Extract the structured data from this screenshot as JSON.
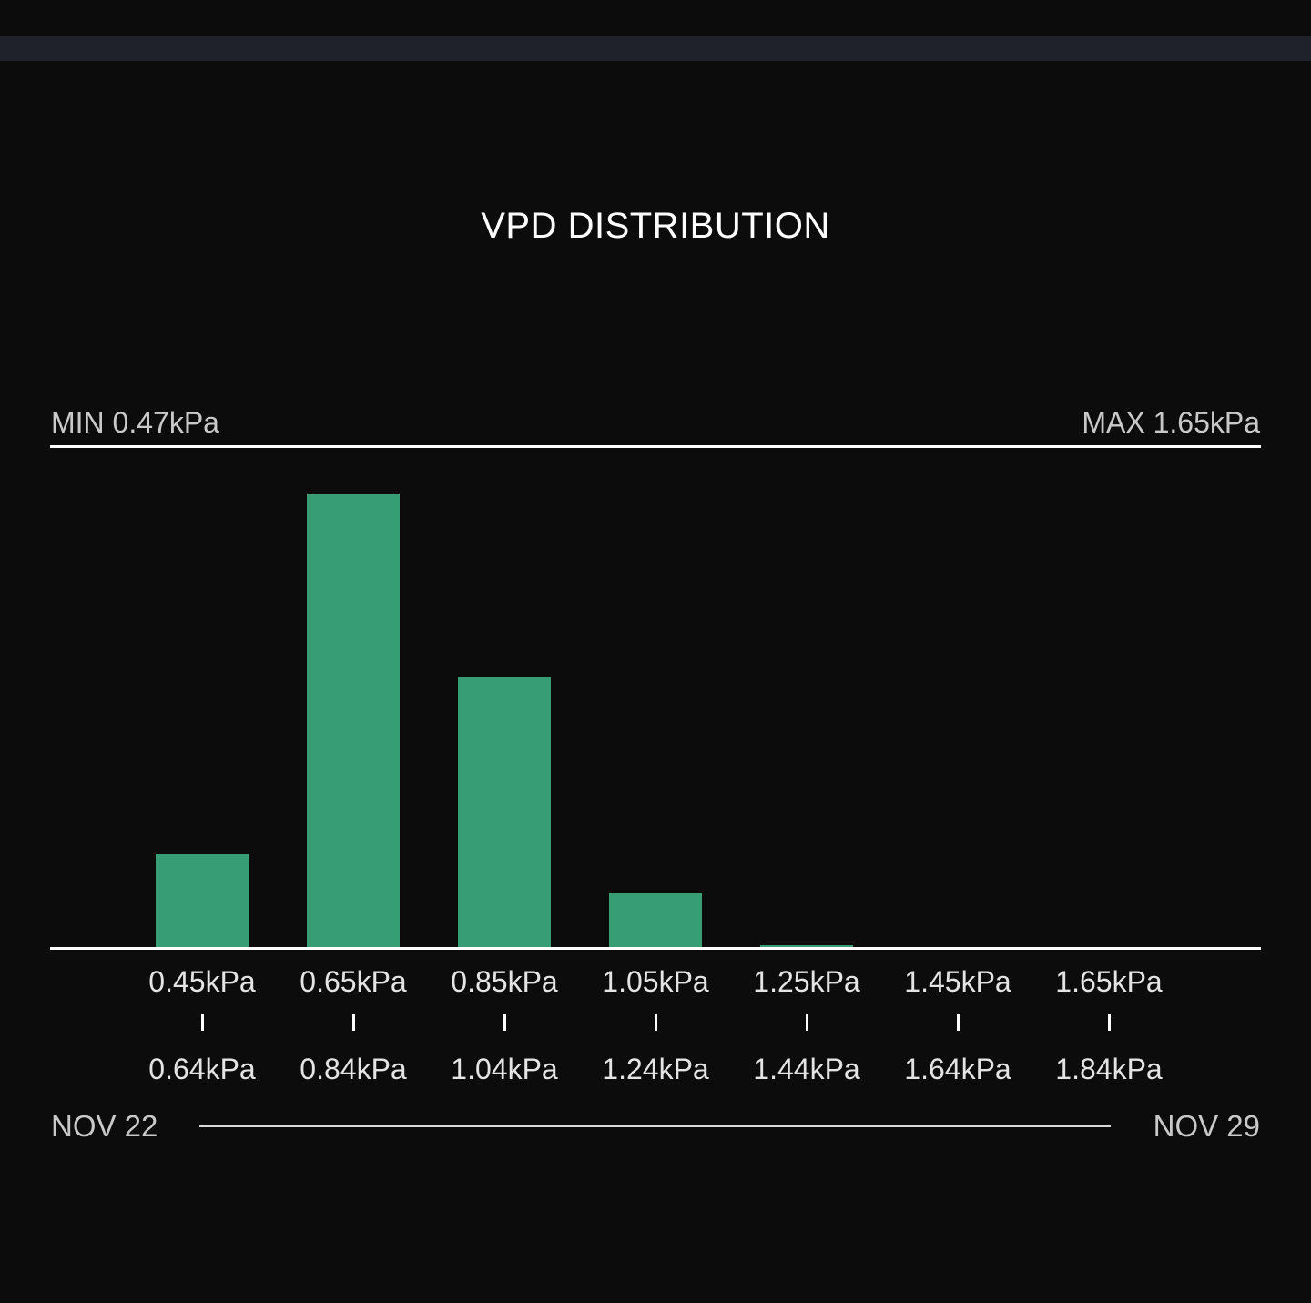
{
  "colors": {
    "background": "#0c0c0d",
    "top_bar": "#1f222a",
    "bar": "#369d74",
    "axis": "#ffffff",
    "label": "#c9c9c9"
  },
  "chart_data": {
    "type": "bar",
    "title": "VPD DISTRIBUTION",
    "min_label": "MIN 0.47kPa",
    "max_label": "MAX 1.65kPa",
    "date_start": "NOV 22",
    "date_end": "NOV 29",
    "grid": false,
    "bins": [
      {
        "from": "0.45kPa",
        "to": "0.64kPa",
        "value": 0.204
      },
      {
        "from": "0.65kPa",
        "to": "0.84kPa",
        "value": 1.0
      },
      {
        "from": "0.85kPa",
        "to": "1.04kPa",
        "value": 0.594
      },
      {
        "from": "1.05kPa",
        "to": "1.24kPa",
        "value": 0.118
      },
      {
        "from": "1.25kPa",
        "to": "1.44kPa",
        "value": 0.004
      },
      {
        "from": "1.45kPa",
        "to": "1.64kPa",
        "value": 0
      },
      {
        "from": "1.65kPa",
        "to": "1.84kPa",
        "value": 0
      }
    ],
    "ylim": [
      0,
      1
    ]
  }
}
